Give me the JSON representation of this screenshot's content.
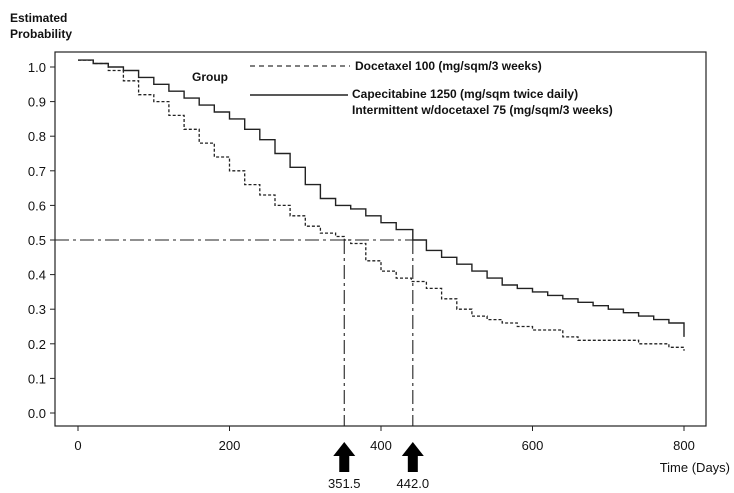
{
  "chart_data": {
    "type": "line",
    "ylabel_line1": "Estimated",
    "ylabel_line2": "Probability",
    "xlabel": "Time (Days)",
    "xlim": [
      0,
      800
    ],
    "ylim": [
      0,
      1.0
    ],
    "xticks": [
      "0",
      "200",
      "400",
      "600",
      "800"
    ],
    "yticks": [
      "0.0",
      "0.1",
      "0.2",
      "0.3",
      "0.4",
      "0.5",
      "0.6",
      "0.7",
      "0.8",
      "0.9",
      "1.0"
    ],
    "grid": false,
    "legend": {
      "title": "Group",
      "placement": "top-right",
      "entries": [
        {
          "label": "Docetaxel 100 (mg/sqm/3 weeks)"
        },
        {
          "label": "Capecitabine 1250 (mg/sqm twice daily)",
          "label2": "Intermittent w/docetaxel 75 (mg/sqm/3 weeks)"
        }
      ]
    },
    "series": [
      {
        "name": "Docetaxel 100 (mg/sqm/3 weeks)",
        "style": "dashed",
        "x": [
          0,
          20,
          40,
          60,
          80,
          100,
          120,
          140,
          160,
          180,
          200,
          220,
          240,
          260,
          280,
          300,
          320,
          340,
          351.5,
          360,
          380,
          400,
          420,
          440,
          460,
          480,
          500,
          520,
          540,
          560,
          580,
          600,
          620,
          640,
          660,
          680,
          700,
          720,
          740,
          760,
          780,
          800
        ],
        "y": [
          1.02,
          1.01,
          0.99,
          0.96,
          0.92,
          0.9,
          0.86,
          0.82,
          0.78,
          0.74,
          0.7,
          0.66,
          0.63,
          0.6,
          0.57,
          0.54,
          0.52,
          0.51,
          0.5,
          0.49,
          0.44,
          0.41,
          0.39,
          0.38,
          0.36,
          0.33,
          0.3,
          0.28,
          0.27,
          0.26,
          0.25,
          0.24,
          0.24,
          0.22,
          0.21,
          0.21,
          0.21,
          0.21,
          0.2,
          0.2,
          0.19,
          0.18
        ]
      },
      {
        "name": "Capecitabine 1250 (mg/sqm twice daily) Intermittent w/docetaxel 75 (mg/sqm/3 weeks)",
        "style": "solid",
        "x": [
          0,
          20,
          40,
          60,
          80,
          100,
          120,
          140,
          160,
          180,
          200,
          220,
          240,
          260,
          280,
          300,
          320,
          340,
          360,
          380,
          400,
          420,
          442,
          460,
          480,
          500,
          520,
          540,
          560,
          580,
          600,
          620,
          640,
          660,
          680,
          700,
          720,
          740,
          760,
          780,
          800
        ],
        "y": [
          1.02,
          1.01,
          1.0,
          0.99,
          0.97,
          0.95,
          0.93,
          0.91,
          0.89,
          0.87,
          0.85,
          0.82,
          0.79,
          0.75,
          0.71,
          0.66,
          0.62,
          0.6,
          0.59,
          0.57,
          0.55,
          0.53,
          0.5,
          0.47,
          0.45,
          0.43,
          0.41,
          0.39,
          0.37,
          0.36,
          0.35,
          0.34,
          0.33,
          0.32,
          0.31,
          0.3,
          0.29,
          0.28,
          0.27,
          0.26,
          0.22
        ]
      }
    ],
    "reference": {
      "y": 0.5,
      "medians": [
        {
          "x": 351.5,
          "label": "351.5"
        },
        {
          "x": 442,
          "label": "442.0"
        }
      ]
    }
  }
}
